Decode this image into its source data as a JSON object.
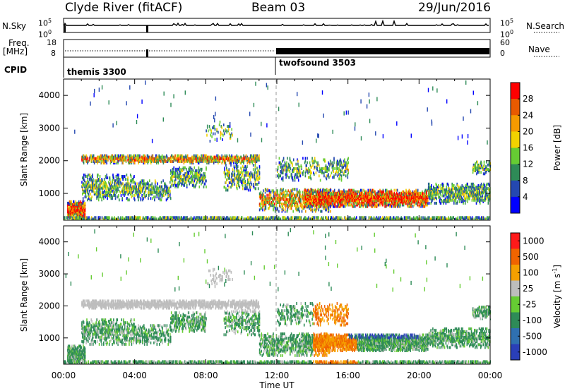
{
  "header": {
    "station": "Clyde River (fitACF)",
    "beam": "Beam 03",
    "date": "29/Jun/2016"
  },
  "side_labels": {
    "nsky": "N.Sky",
    "freq": "Freq.",
    "freq_unit": "[MHz]",
    "cpid": "CPID",
    "nsearch": "N.Search",
    "nave": "Nave"
  },
  "nsky_panel": {
    "left_ticks": [
      "10^5",
      "10^0"
    ],
    "right_ticks": [
      "10^5",
      "10^0"
    ]
  },
  "freq_panel": {
    "left_ticks": [
      "18",
      "8"
    ],
    "right_ticks": [
      "60",
      "0"
    ]
  },
  "cpid": {
    "segments": [
      {
        "label": "themis 3300",
        "start_hour": 0
      },
      {
        "label": "twofsound 3503",
        "start_hour": 12
      }
    ]
  },
  "chart_data": [
    {
      "type": "heatmap",
      "title": "",
      "ylabel": "Slant Range [km]",
      "xlabel": "",
      "xlim": [
        0,
        24
      ],
      "ylim": [
        180,
        4500
      ],
      "y_ticks": [
        "1000",
        "2000",
        "3000",
        "4000"
      ],
      "colorbar": {
        "label": "Power [dB]",
        "ticks": [
          "4",
          "8",
          "12",
          "16",
          "20",
          "24",
          "28"
        ],
        "colors": [
          "#0000ff",
          "#2448b0",
          "#2e8b57",
          "#66cc33",
          "#f2d200",
          "#f59a00",
          "#e85a00",
          "#ff0000"
        ]
      }
    },
    {
      "type": "heatmap",
      "title": "",
      "ylabel": "Slant Range [km]",
      "xlabel": "Time UT",
      "xlim": [
        0,
        24
      ],
      "ylim": [
        180,
        4500
      ],
      "x_ticks": [
        "00:00",
        "04:00",
        "08:00",
        "12:00",
        "16:00",
        "20:00",
        "00:00"
      ],
      "y_ticks": [
        "1000",
        "2000",
        "3000",
        "4000"
      ],
      "colorbar": {
        "label": "Velocity [m s^-1]",
        "ticks": [
          "1000",
          "500",
          "100",
          "25",
          "-25",
          "-100",
          "-500",
          "-1000"
        ],
        "colors": [
          "#2a3fb8",
          "#2f70b0",
          "#2e8b57",
          "#66cc33",
          "#bdbdbd",
          "#f5a000",
          "#f06400",
          "#ff1a1a"
        ]
      }
    }
  ]
}
